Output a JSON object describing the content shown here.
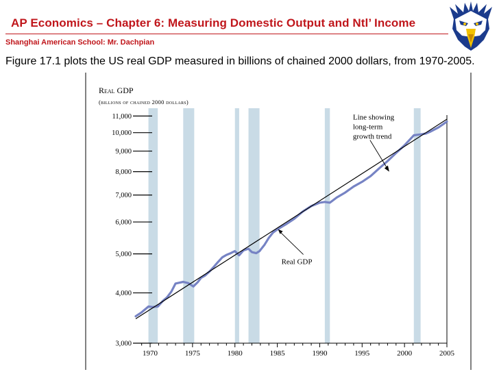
{
  "header": {
    "title": "AP Economics – Chapter 6: Measuring Domestic Output and Ntl’ Income",
    "subtitle": "Shanghai American School: Mr. Dachpian",
    "description": "Figure 17.1 plots the US real GDP measured in billions of chained 2000 dollars, from 1970-2005.",
    "mascot_icon": "eagle-mascot-icon"
  },
  "colors": {
    "title_red": "#c0161b",
    "recession_band": "#c9dbe6",
    "gdp_line": "#7683c4",
    "trend_line": "#000000"
  },
  "chart_data": {
    "type": "line",
    "title": "Real GDP",
    "ylabel_sub": "(billions of chained 2000 dollars)",
    "yscale": "log",
    "ylim": [
      3000,
      11500
    ],
    "xlim": [
      1968.3,
      2005
    ],
    "xticks": [
      1970,
      1975,
      1980,
      1985,
      1990,
      1995,
      2000,
      2005
    ],
    "yticks": [
      3000,
      4000,
      5000,
      6000,
      7000,
      8000,
      9000,
      10000,
      11000
    ],
    "ytick_labels": [
      "3,000",
      "4,000",
      "5,000",
      "6,000",
      "7,000",
      "8,000",
      "9,000",
      "10,000",
      "11,000"
    ],
    "recessions": [
      [
        1969.8,
        1970.9
      ],
      [
        1973.9,
        1975.2
      ],
      [
        1980.0,
        1980.5
      ],
      [
        1981.6,
        1982.9
      ],
      [
        1990.6,
        1991.2
      ],
      [
        2001.1,
        2001.9
      ]
    ],
    "series": [
      {
        "name": "Real GDP",
        "x": [
          1968.3,
          1969,
          1969.8,
          1970.3,
          1970.9,
          1971.5,
          1972,
          1972.5,
          1973,
          1973.9,
          1974.5,
          1975.1,
          1975.6,
          1976,
          1976.5,
          1977,
          1977.5,
          1978,
          1978.5,
          1979,
          1979.5,
          1980,
          1980.5,
          1981,
          1981.6,
          1982,
          1982.5,
          1982.9,
          1983.5,
          1984,
          1984.5,
          1985,
          1986,
          1987,
          1988,
          1989,
          1990,
          1990.6,
          1991.2,
          1992,
          1993,
          1994,
          1995,
          1996,
          1997,
          1998,
          1999,
          2000,
          2001.1,
          2001.9,
          2002.5,
          2003,
          2004,
          2005
        ],
        "values": [
          3500,
          3580,
          3700,
          3690,
          3700,
          3820,
          3900,
          4030,
          4220,
          4260,
          4230,
          4150,
          4250,
          4360,
          4420,
          4520,
          4640,
          4770,
          4900,
          4970,
          5020,
          5080,
          4960,
          5100,
          5150,
          5050,
          5020,
          5080,
          5270,
          5480,
          5650,
          5750,
          5920,
          6110,
          6370,
          6570,
          6700,
          6730,
          6700,
          6900,
          7100,
          7350,
          7550,
          7800,
          8150,
          8500,
          8900,
          9300,
          9850,
          9900,
          9950,
          10050,
          10300,
          10650
        ]
      },
      {
        "name": "Line showing long-term growth trend",
        "x": [
          1968.3,
          2005
        ],
        "values": [
          3450,
          10800
        ]
      }
    ],
    "annotations": [
      {
        "text": "Real GDP",
        "target_x": 1985.0,
        "target_y": 5780
      },
      {
        "lines": [
          "Line showing",
          "long-term",
          "growth trend"
        ],
        "target_x": 1998.2,
        "target_y": 8000
      }
    ]
  }
}
